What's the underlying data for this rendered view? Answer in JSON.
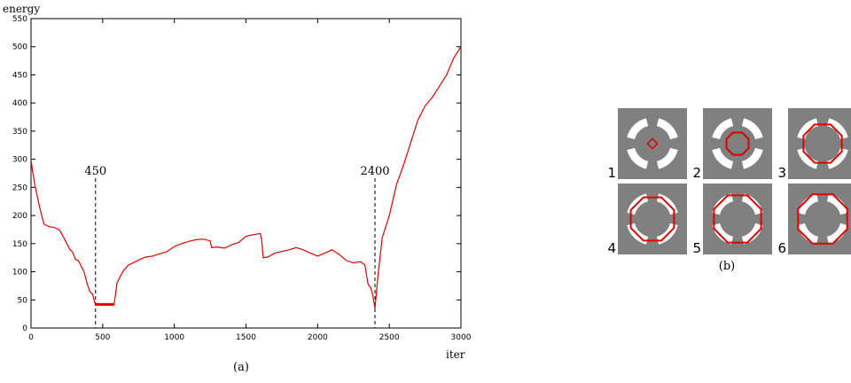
{
  "chart_data": [
    {
      "type": "line",
      "title": "",
      "xlabel": "iter",
      "ylabel": "energy",
      "xlim": [
        0,
        3000
      ],
      "ylim": [
        0,
        550
      ],
      "x_ticks": [
        0,
        500,
        1000,
        1500,
        2000,
        2500,
        3000
      ],
      "y_ticks": [
        0,
        50,
        100,
        150,
        200,
        250,
        300,
        350,
        400,
        450,
        500,
        550
      ],
      "grid": false,
      "legend": "none",
      "line_color": "#e00000",
      "series": [
        {
          "x": [
            0,
            10,
            30,
            60,
            90,
            110,
            130,
            160,
            200,
            230,
            250,
            270,
            290,
            310,
            330,
            350,
            370,
            390,
            410,
            430,
            445,
            450,
            460,
            480,
            500,
            530,
            560,
            580,
            600,
            640,
            680,
            720,
            760,
            800,
            850,
            900,
            950,
            1000,
            1050,
            1100,
            1150,
            1200,
            1250,
            1260,
            1300,
            1350,
            1400,
            1450,
            1500,
            1550,
            1600,
            1610,
            1620,
            1650,
            1700,
            1750,
            1800,
            1850,
            1900,
            1950,
            2000,
            2050,
            2100,
            2150,
            2200,
            2250,
            2300,
            2330,
            2350,
            2360,
            2370,
            2385,
            2400,
            2420,
            2450,
            2500,
            2550,
            2600,
            2650,
            2700,
            2750,
            2800,
            2850,
            2900,
            2950,
            3000
          ],
          "y": [
            300,
            280,
            250,
            215,
            185,
            182,
            180,
            179,
            174,
            160,
            150,
            140,
            135,
            122,
            120,
            110,
            100,
            80,
            65,
            60,
            45,
            42,
            42,
            42,
            42,
            42,
            42,
            42,
            80,
            100,
            112,
            117,
            122,
            126,
            128,
            132,
            136,
            145,
            150,
            154,
            157,
            158,
            155,
            143,
            144,
            142,
            148,
            152,
            163,
            166,
            168,
            155,
            125,
            126,
            133,
            136,
            139,
            143,
            139,
            133,
            128,
            133,
            139,
            131,
            120,
            116,
            118,
            112,
            80,
            75,
            72,
            58,
            35,
            90,
            160,
            200,
            255,
            290,
            330,
            370,
            395,
            410,
            430,
            450,
            480,
            500
          ]
        }
      ],
      "annotations": [
        {
          "x": 450,
          "label": "450"
        },
        {
          "x": 2400,
          "label": "2400"
        }
      ],
      "caption": "(a)"
    }
  ],
  "panel_b": {
    "caption": "(b)",
    "background_gray": "#808080",
    "ring_color": "#ffffff",
    "contour_color": "#e00000",
    "tiles": [
      {
        "label": "1",
        "contour_radius": 0.1
      },
      {
        "label": "2",
        "contour_radius": 0.45
      },
      {
        "label": "3",
        "contour_radius": 0.78
      },
      {
        "label": "4",
        "contour_radius": 0.88
      },
      {
        "label": "5",
        "contour_radius": 0.96
      },
      {
        "label": "6",
        "contour_radius": 1.0
      }
    ]
  }
}
